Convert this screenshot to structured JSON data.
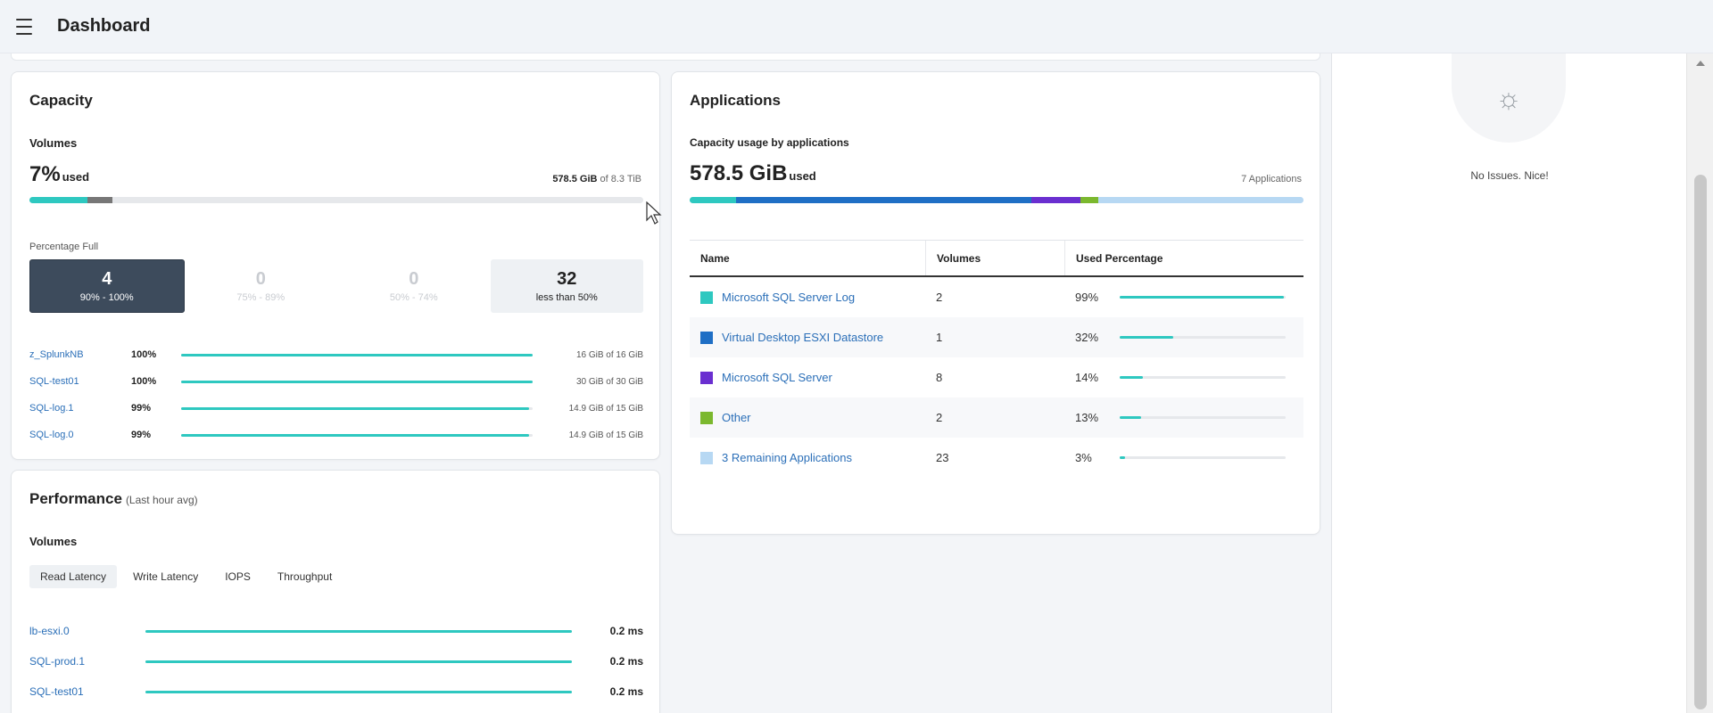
{
  "header": {
    "title": "Dashboard",
    "menu_icon": "hamburger-icon"
  },
  "capacity": {
    "title": "Capacity",
    "volumes_label": "Volumes",
    "used_value": "7%",
    "used_unit": "used",
    "used_amount": "578.5 GiB",
    "of_text": "of 8.3 TiB",
    "bar_segments": [
      {
        "color": "#2ec8c0",
        "fraction": 0.095
      },
      {
        "color": "#777777",
        "fraction": 0.04
      }
    ],
    "percentage_full_label": "Percentage Full",
    "tiles": [
      {
        "count": "4",
        "range": "90% - 100%"
      },
      {
        "count": "0",
        "range": "75% - 89%"
      },
      {
        "count": "0",
        "range": "50% - 74%"
      },
      {
        "count": "32",
        "range": "less than 50%"
      }
    ],
    "volumes": [
      {
        "name": "z_SplunkNB",
        "pct": "100%",
        "fill": 1.0,
        "cap": "16 GiB of 16 GiB"
      },
      {
        "name": "SQL-test01",
        "pct": "100%",
        "fill": 1.0,
        "cap": "30 GiB of 30 GiB"
      },
      {
        "name": "SQL-log.1",
        "pct": "99%",
        "fill": 0.99,
        "cap": "14.9 GiB of 15 GiB"
      },
      {
        "name": "SQL-log.0",
        "pct": "99%",
        "fill": 0.99,
        "cap": "14.9 GiB of 15 GiB"
      }
    ]
  },
  "performance": {
    "title": "Performance",
    "subtitle": "(Last hour avg)",
    "volumes_label": "Volumes",
    "tabs": [
      "Read Latency",
      "Write Latency",
      "IOPS",
      "Throughput"
    ],
    "rows": [
      {
        "name": "lb-esxi.0",
        "fill": 1.0,
        "value": "0.2 ms"
      },
      {
        "name": "SQL-prod.1",
        "fill": 1.0,
        "value": "0.2 ms"
      },
      {
        "name": "SQL-test01",
        "fill": 1.0,
        "value": "0.2 ms"
      }
    ]
  },
  "applications": {
    "title": "Applications",
    "subtitle": "Capacity usage by applications",
    "used_value": "578.5 GiB",
    "used_unit": "used",
    "count_text": "7 Applications",
    "bar_segments": [
      {
        "color": "#2ec8c0",
        "fraction": 0.076
      },
      {
        "color": "#1f6fc5",
        "fraction": 0.48
      },
      {
        "color": "#6a2fd0",
        "fraction": 0.08
      },
      {
        "color": "#7bb82e",
        "fraction": 0.03
      },
      {
        "color": "#b7d8f3",
        "fraction": 0.334
      }
    ],
    "table_headers": [
      "Name",
      "Volumes",
      "Used Percentage"
    ],
    "rows": [
      {
        "color": "#2ec8c0",
        "name": "Microsoft SQL Server Log",
        "volumes": "2",
        "pct": "99%",
        "fill": 0.99
      },
      {
        "color": "#1f6fc5",
        "name": "Virtual Desktop ESXI Datastore",
        "volumes": "1",
        "pct": "32%",
        "fill": 0.32
      },
      {
        "color": "#6a2fd0",
        "name": "Microsoft SQL Server",
        "volumes": "8",
        "pct": "14%",
        "fill": 0.14
      },
      {
        "color": "#7bb82e",
        "name": "Other",
        "volumes": "2",
        "pct": "13%",
        "fill": 0.13
      },
      {
        "color": "#b7d8f3",
        "name": "3 Remaining Applications",
        "volumes": "23",
        "pct": "3%",
        "fill": 0.03
      }
    ]
  },
  "issues": {
    "icon": "sun-icon",
    "text": "No Issues. Nice!"
  }
}
